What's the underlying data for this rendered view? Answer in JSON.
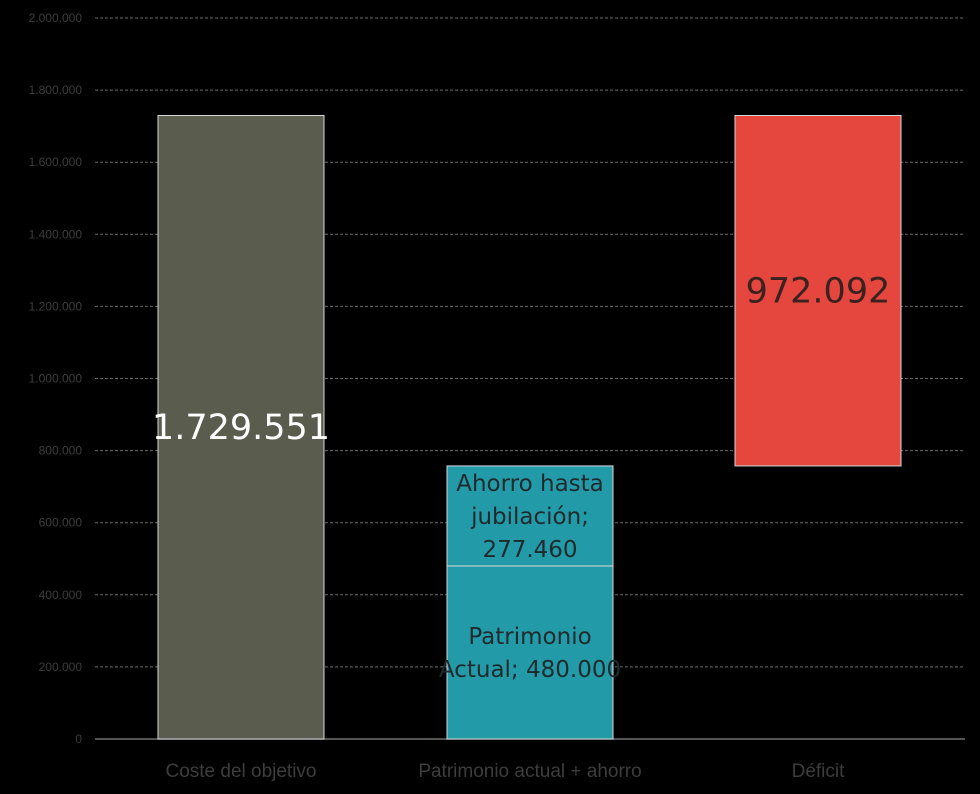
{
  "chart_data": {
    "type": "bar",
    "stacked": "waterfall",
    "categories": [
      "Coste del objetivo",
      "Patrimonio actual + ahorro",
      "Déficit"
    ],
    "ylim": [
      0,
      2000000
    ],
    "y_ticks": [
      "0",
      "200.000",
      "400.000",
      "600.000",
      "800.000",
      "1.000.000",
      "1.200.000",
      "1.400.000",
      "1.600.000",
      "1.800.000",
      "2.000.000"
    ],
    "grid": true,
    "segments": [
      {
        "category": "Coste del objetivo",
        "base": 0,
        "value": 1729551,
        "label": "1.729.551",
        "color": "#5a5c4e",
        "label_color": "#ffffff"
      },
      {
        "category": "Patrimonio actual + ahorro",
        "base": 0,
        "value": 480000,
        "label": "Patrimonio Actual; 480.000",
        "label_lines": [
          "Patrimonio",
          "Actual; 480.000"
        ],
        "color": "#239aa8",
        "label_color": "#1f2a2c"
      },
      {
        "category": "Patrimonio actual + ahorro",
        "base": 480000,
        "value": 277460,
        "label": "Ahorro hasta jubilación; 277.460",
        "label_lines": [
          "Ahorro hasta",
          "jubilación;",
          "277.460"
        ],
        "color": "#239aa8",
        "label_color": "#1f2a2c"
      },
      {
        "category": "Déficit",
        "base": 757460,
        "value": 972092,
        "label": "972.092",
        "color": "#e5463e",
        "label_color": "#3a2220"
      }
    ]
  }
}
